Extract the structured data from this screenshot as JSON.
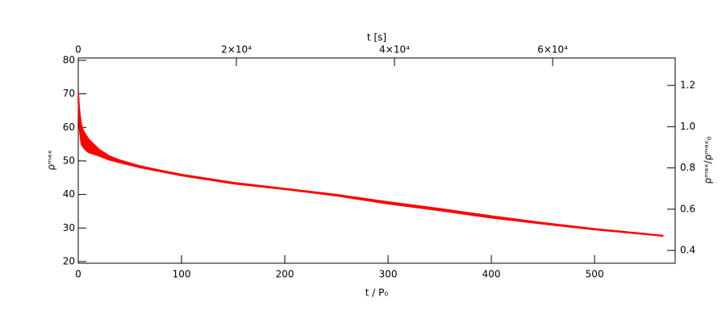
{
  "chart_data": {
    "type": "area-band",
    "xlabel": "t / P₀",
    "ylabel": "ρᵐᵃˣ",
    "x2label": "t [s]",
    "y2label": "ρᵐᵃˣ/ρᵐᵃˣ₀",
    "x": [
      0,
      1,
      2,
      3,
      5,
      8,
      10,
      15,
      20,
      30,
      40,
      60,
      80,
      100,
      150,
      200,
      250,
      300,
      350,
      400,
      450,
      500,
      566
    ],
    "series": [
      {
        "color": "#ff0000",
        "values": [
          71,
          66,
          63,
          61,
          59,
          57.5,
          56.5,
          55,
          53.5,
          51.5,
          50.3,
          48.5,
          47.2,
          46,
          43.6,
          41.8,
          40,
          37.8,
          35.8,
          33.6,
          31.6,
          29.8,
          27.8
        ]
      },
      {
        "color": "#ff0000",
        "values": [
          68,
          60,
          57,
          55,
          54,
          53,
          52.5,
          52,
          51.5,
          50.3,
          49.5,
          48,
          46.8,
          45.6,
          43.2,
          41.5,
          39.6,
          37.2,
          35.2,
          33,
          31.2,
          29.5,
          27.6
        ]
      }
    ],
    "xlim": [
      0,
      578
    ],
    "xticks": [
      0,
      100,
      200,
      300,
      400,
      500
    ],
    "ylim": [
      19.5,
      80.7
    ],
    "yticks": [
      20,
      30,
      40,
      50,
      60,
      70,
      80
    ],
    "x2lim": [
      0,
      75500
    ],
    "x2ticks": [
      0,
      {
        "value": 20000,
        "label": "2×10⁴"
      },
      {
        "value": 40000,
        "label": "4×10⁴"
      },
      {
        "value": 60000,
        "label": "6×10⁴"
      }
    ],
    "y2lim": [
      0.338,
      1.333
    ],
    "y2ticks": [
      0.4,
      0.6,
      0.8,
      {
        "value": 1.0,
        "label": "1.0"
      },
      1.2
    ]
  }
}
